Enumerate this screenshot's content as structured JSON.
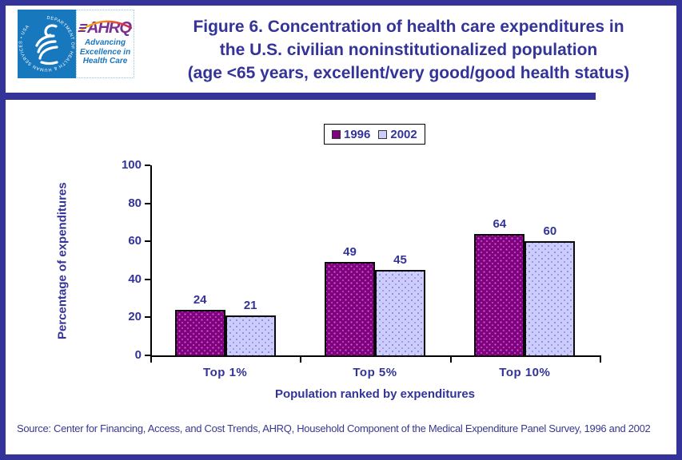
{
  "header": {
    "logo": {
      "hhs_ring_text": "DEPARTMENT OF HEALTH & HUMAN SERVICES • USA",
      "ahrq_acronym": "AHRQ",
      "ahrq_tagline": "Advancing\nExcellence in\nHealth Care"
    },
    "title_lines": [
      "Figure 6. Concentration of health care expenditures in",
      "the U.S. civilian noninstitutionalized population",
      "(age <65 years, excellent/very good/good health status)"
    ]
  },
  "chart_data": {
    "type": "bar",
    "title": "Figure 6. Concentration of health care expenditures in the U.S. civilian noninstitutionalized population (age <65 years, excellent/very good/good health status)",
    "categories": [
      "Top 1%",
      "Top 5%",
      "Top 10%"
    ],
    "series": [
      {
        "name": "1996",
        "values": [
          24,
          49,
          64
        ],
        "color": "#800080"
      },
      {
        "name": "2002",
        "values": [
          21,
          45,
          60
        ],
        "color": "#CCCCFF"
      }
    ],
    "xlabel": "Population ranked by expenditures",
    "ylabel": "Percentage of expenditures",
    "ylim": [
      0,
      100
    ],
    "yticks": [
      0,
      20,
      40,
      60,
      80,
      100
    ],
    "grid": false,
    "legend_position": "top-center",
    "bar_labels": true
  },
  "source": "Source: Center for Financing, Access, and Cost Trends, AHRQ, Household Component of the Medical Expenditure Panel Survey, 1996 and 2002",
  "colors": {
    "navy": "#333399",
    "bar_1996": "#800080",
    "bar_2002": "#CCCCFF",
    "axis": "#000000",
    "hhs_blue": "#1878BE",
    "ahrq_purple": "#7B2E93",
    "tagline_blue": "#1B75BB"
  }
}
